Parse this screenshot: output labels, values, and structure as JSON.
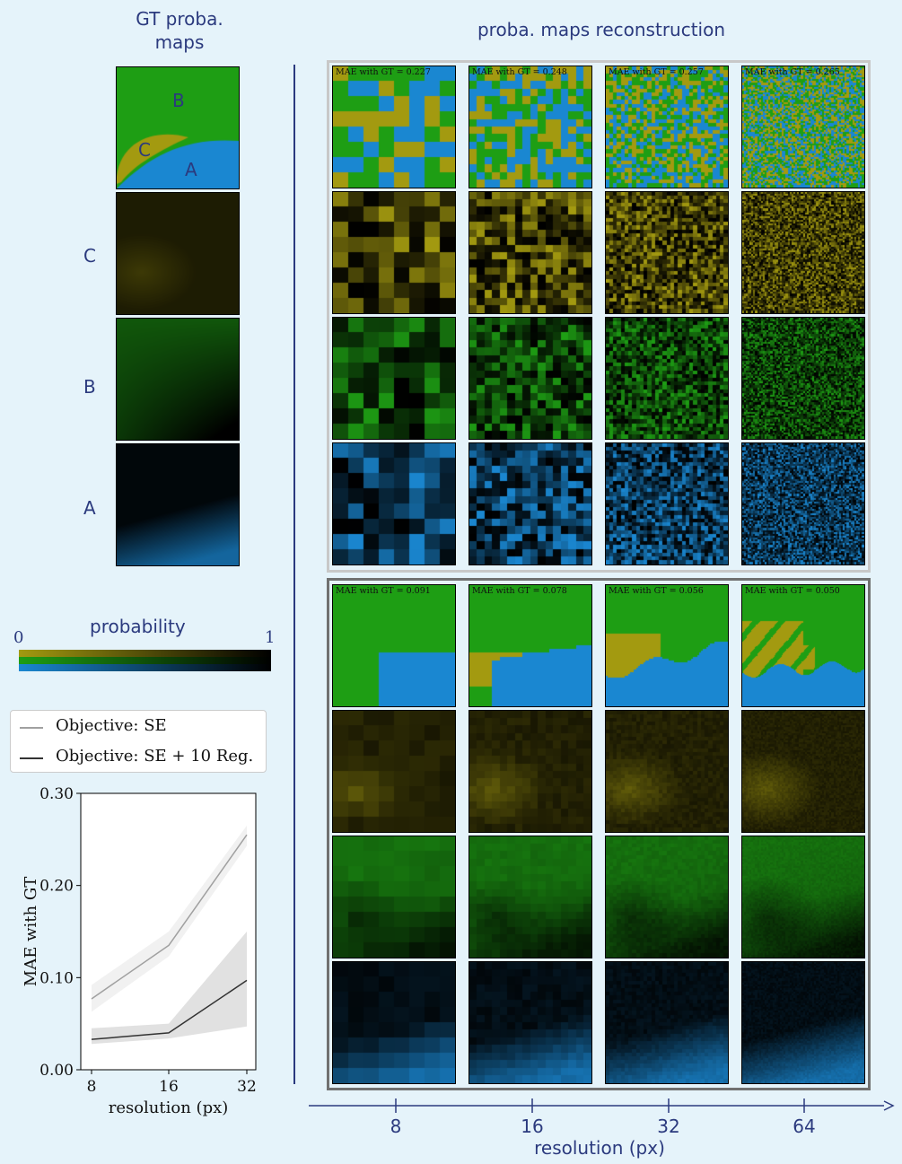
{
  "left_title": {
    "line1": "GT proba.",
    "line2": "maps"
  },
  "right_title": "proba. maps reconstruction",
  "gt_region_labels": {
    "A": "A",
    "B": "B",
    "C": "C"
  },
  "row_labels": [
    "C",
    "B",
    "A"
  ],
  "colorbar": {
    "title": "probability",
    "min_label": "0",
    "max_label": "1",
    "colors": {
      "C": "#a39a10",
      "B": "#1e9e14",
      "A": "#1a87d1"
    }
  },
  "grid": {
    "resolutions": [
      "8",
      "16",
      "32",
      "64"
    ],
    "top_mae": [
      "MAE with GT = 0.227",
      "MAE with GT = 0.248",
      "MAE with GT = 0.257",
      "MAE with GT = 0.265"
    ],
    "bottom_mae": [
      "MAE with GT = 0.091",
      "MAE with GT = 0.078",
      "MAE with GT = 0.056",
      "MAE with GT = 0.050"
    ]
  },
  "bottom_axis": {
    "label": "resolution (px)",
    "ticks": [
      "8",
      "16",
      "32",
      "64"
    ]
  },
  "chart_data": {
    "type": "line",
    "x": [
      8,
      16,
      32
    ],
    "xticks": [
      "8",
      "16",
      "32"
    ],
    "yticks": [
      "0.00",
      "0.10",
      "0.20",
      "0.30"
    ],
    "xlabel": "resolution (px)",
    "ylabel": "MAE with GT",
    "ylim": [
      0,
      0.3
    ],
    "legend_placement": "top",
    "series": [
      {
        "name": "Objective: SE",
        "values": [
          0.077,
          0.135,
          0.255
        ],
        "band_low": [
          0.063,
          0.123,
          0.243
        ],
        "band_high": [
          0.092,
          0.15,
          0.265
        ],
        "color": "#a0a0a0"
      },
      {
        "name": "Objective: SE + 10 Reg.",
        "values": [
          0.033,
          0.04,
          0.097
        ],
        "band_low": [
          0.028,
          0.034,
          0.047
        ],
        "band_high": [
          0.045,
          0.05,
          0.15
        ],
        "color": "#333333"
      }
    ]
  }
}
